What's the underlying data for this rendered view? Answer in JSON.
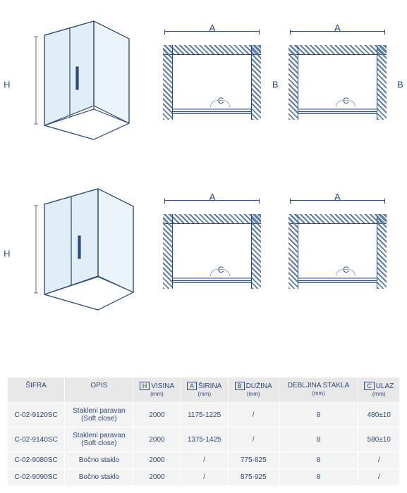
{
  "colors": {
    "line": "#2d4a7a",
    "glass": "rgba(150,200,230,0.35)",
    "bg": "#ffffff",
    "header_bg": "#e8e8e8",
    "row_bg": "#f3f3f3"
  },
  "labels": {
    "H": "H",
    "A": "A",
    "B": "B",
    "C": "C"
  },
  "table": {
    "headers": {
      "sifra": "ŠIFRA",
      "opis": "OPIS",
      "visina_box": "H",
      "visina": "VISINA",
      "visina_unit": "(mm)",
      "sirina_box": "A",
      "sirina": "ŠIRINA",
      "sirina_unit": "(mm)",
      "duzina_box": "B",
      "duzina": "DUŽINA",
      "duzina_unit": "(mm)",
      "debljina": "DEBLJINA STAKLA",
      "debljina_unit": "(mm)",
      "ulaz_box": "C",
      "ulaz": "ULAZ",
      "ulaz_unit": "(mm)"
    },
    "rows": [
      {
        "sifra": "C-02-9120SC",
        "opis": "Stakleni paravan (Soft close)",
        "visina": "2000",
        "sirina": "1175-1225",
        "duzina": "/",
        "debljina": "8",
        "ulaz": "480±10"
      },
      {
        "sifra": "C-02-9140SC",
        "opis": "Stakleni paravan (Soft close)",
        "visina": "2000",
        "sirina": "1375-1425",
        "duzina": "/",
        "debljina": "8",
        "ulaz": "580±10"
      },
      {
        "sifra": "C-02-9080SC",
        "opis": "Bočno staklo",
        "visina": "2000",
        "sirina": "/",
        "duzina": "775-825",
        "debljina": "8",
        "ulaz": "/"
      },
      {
        "sifra": "C-02-9090SC",
        "opis": "Bočno staklo",
        "visina": "2000",
        "sirina": "/",
        "duzina": "875-925",
        "debljina": "8",
        "ulaz": "/"
      }
    ]
  }
}
